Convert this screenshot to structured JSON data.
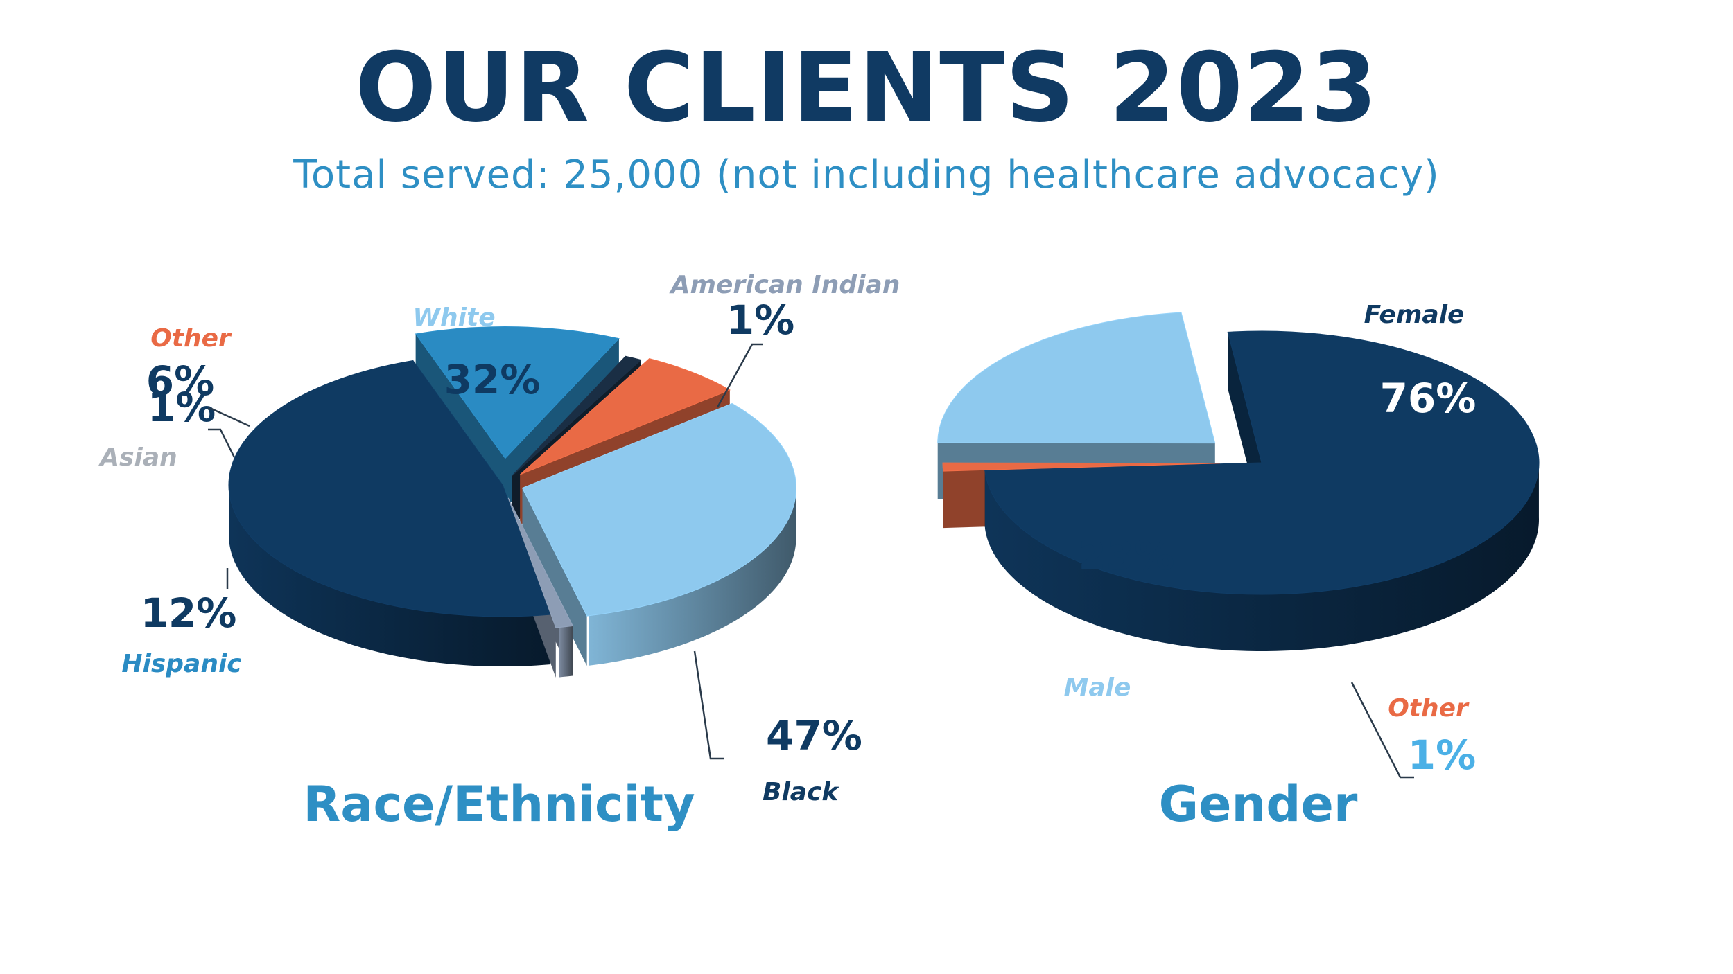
{
  "header": {
    "title": "OUR CLIENTS 2023",
    "subtitle": "Total served: 25,000 (not including healthcare advocacy)"
  },
  "colors": {
    "title": "#103a63",
    "subtitle": "#2e8fc4",
    "dark_navy": "#0f3a62",
    "light_blue": "#8ec9ee",
    "mid_blue": "#2a8bc3",
    "orange": "#e96a45",
    "slate": "#8d9db5",
    "asian_label": "#aab0b8"
  },
  "chart_data": [
    {
      "type": "pie",
      "title": "Race/Ethnicity",
      "style": "3d-exploded",
      "slices": [
        {
          "label": "Black",
          "value": 47,
          "pct_label": "47%",
          "color": "#0f3a62",
          "label_color": "#0f3a62",
          "pct_color": "#0f3a62"
        },
        {
          "label": "Hispanic",
          "value": 12,
          "pct_label": "12%",
          "color": "#2a8bc3",
          "label_color": "#2a8bc3",
          "pct_color": "#0f3a62"
        },
        {
          "label": "Asian",
          "value": 1,
          "pct_label": "1%",
          "color": "#1a2e44",
          "label_color": "#aab0b8",
          "pct_color": "#0f3a62"
        },
        {
          "label": "Other",
          "value": 6,
          "pct_label": "6%",
          "color": "#e96a45",
          "label_color": "#e96a45",
          "pct_color": "#0f3a62"
        },
        {
          "label": "White",
          "value": 32,
          "pct_label": "32%",
          "color": "#8ec9ee",
          "label_color": "#8ec9ee",
          "pct_color": "#0f3a62"
        },
        {
          "label": "American Indian",
          "value": 1,
          "pct_label": "1%",
          "color": "#8d9db5",
          "label_color": "#8d9db5",
          "pct_color": "#0f3a62"
        }
      ]
    },
    {
      "type": "pie",
      "title": "Gender",
      "style": "3d-exploded",
      "slices": [
        {
          "label": "Female",
          "value": 76,
          "pct_label": "76%",
          "color": "#0f3a62",
          "label_color": "#0f3a62",
          "pct_color": "#ffffff"
        },
        {
          "label": "Other",
          "value": 1,
          "pct_label": "1%",
          "color": "#e96a45",
          "label_color": "#e96a45",
          "pct_color": "#4bb0e6"
        },
        {
          "label": "Male",
          "value": 23,
          "pct_label": "23%",
          "color": "#8ec9ee",
          "label_color": "#8ec9ee",
          "pct_color": "#0f3a62"
        }
      ]
    }
  ]
}
